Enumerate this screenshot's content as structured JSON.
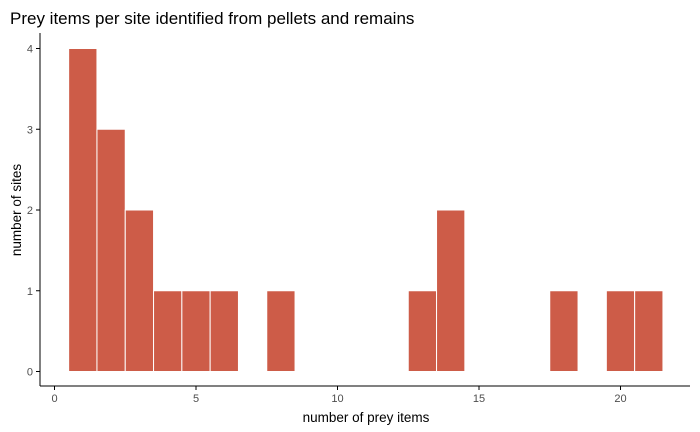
{
  "chart_data": {
    "type": "bar",
    "title": "Prey items per site identified from pellets and remains",
    "xlabel": "number of prey items",
    "ylabel": "number of sites",
    "xlim": [
      0,
      22
    ],
    "ylim": [
      0,
      4
    ],
    "x_ticks": [
      0,
      5,
      10,
      15,
      20
    ],
    "y_ticks": [
      0,
      1,
      2,
      3,
      4
    ],
    "bin_width": 1,
    "bins": [
      {
        "center": 1,
        "count": 4
      },
      {
        "center": 2,
        "count": 3
      },
      {
        "center": 3,
        "count": 2
      },
      {
        "center": 4,
        "count": 1
      },
      {
        "center": 5,
        "count": 1
      },
      {
        "center": 6,
        "count": 1
      },
      {
        "center": 8,
        "count": 1
      },
      {
        "center": 13,
        "count": 1
      },
      {
        "center": 14,
        "count": 2
      },
      {
        "center": 18,
        "count": 1
      },
      {
        "center": 20,
        "count": 1
      },
      {
        "center": 21,
        "count": 1
      }
    ],
    "grid": false,
    "colors": {
      "fill": "#cd5c48",
      "outline": "#ffffff",
      "axis": "#000000",
      "tick_text": "#4d4d4d"
    }
  }
}
